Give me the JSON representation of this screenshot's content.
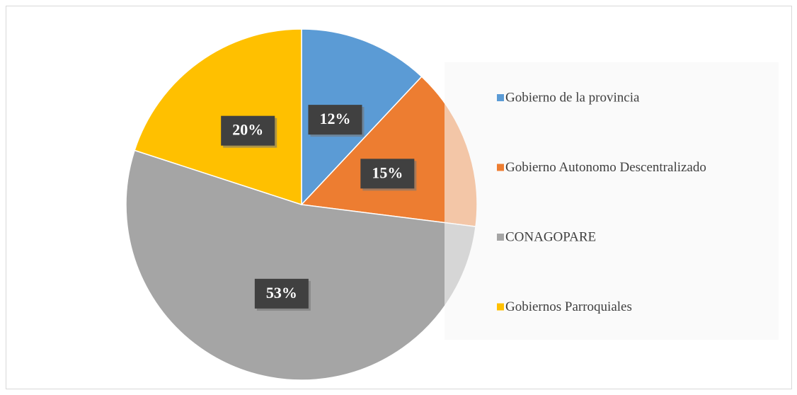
{
  "chart_data": {
    "type": "pie",
    "categories": [
      "Gobierno de la provincia",
      "Gobierno Autonomo Descentralizado",
      "CONAGOPARE",
      "Gobiernos Parroquiales"
    ],
    "values": [
      12,
      15,
      53,
      20
    ],
    "value_labels": [
      "12%",
      "15%",
      "53%",
      "20%"
    ],
    "colors": [
      "#5b9bd5",
      "#ed7d31",
      "#a5a5a5",
      "#ffc000"
    ],
    "legend": "right"
  }
}
